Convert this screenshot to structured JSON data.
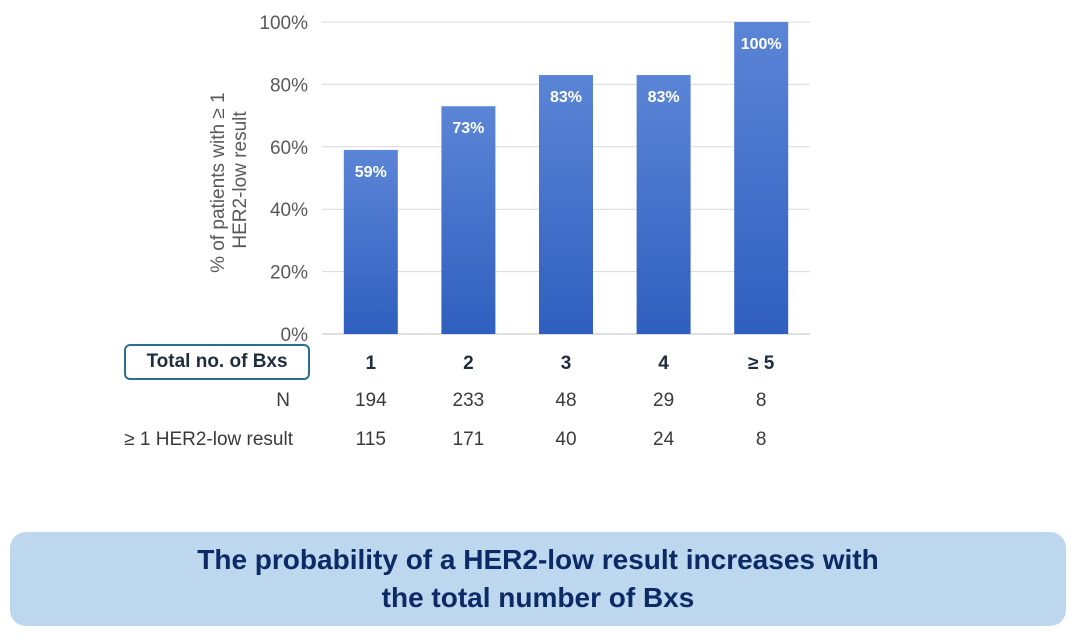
{
  "chart_data": {
    "type": "bar",
    "categories": [
      "1",
      "2",
      "3",
      "4",
      "≥ 5"
    ],
    "values": [
      59,
      73,
      83,
      83,
      100
    ],
    "value_labels": [
      "59%",
      "73%",
      "83%",
      "83%",
      "100%"
    ],
    "ylabel_lines": [
      "% of patients with ≥ 1",
      "HER2-low result"
    ],
    "ylim": [
      0,
      100
    ],
    "yticks": [
      0,
      20,
      40,
      60,
      80,
      100
    ],
    "ytick_labels": [
      "0%",
      "20%",
      "40%",
      "60%",
      "80%",
      "100%"
    ],
    "grid": true,
    "bar_color_top": "#5b85d6",
    "bar_color_bottom": "#2f5fbf"
  },
  "table": {
    "header_label": "Total no. of Bxs",
    "rows": [
      {
        "label": "N",
        "values": [
          "194",
          "233",
          "48",
          "29",
          "8"
        ]
      },
      {
        "label": "≥ 1 HER2-low result",
        "values": [
          "115",
          "171",
          "40",
          "24",
          "8"
        ]
      }
    ]
  },
  "conclusion": {
    "line1": "The probability of a HER2-low result increases with",
    "line2": "the total number of Bxs"
  }
}
